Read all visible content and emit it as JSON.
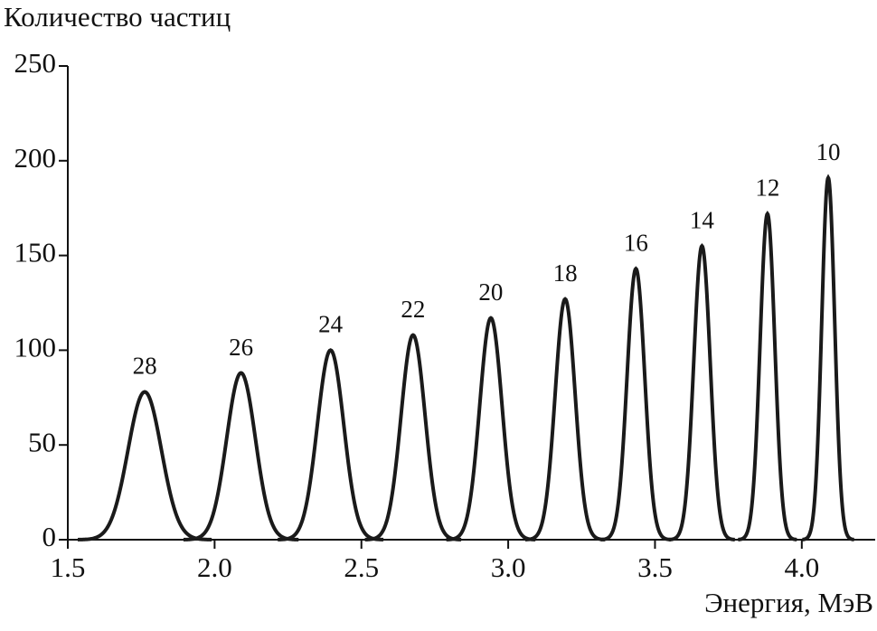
{
  "chart_data": {
    "type": "line",
    "ylabel": "Количество частиц",
    "xlabel": "Энергия, МэВ",
    "xlim": [
      1.5,
      4.25
    ],
    "ylim": [
      0,
      250
    ],
    "xticks": [
      {
        "value": 1.5,
        "label": "1.5"
      },
      {
        "value": 2.0,
        "label": "2.0"
      },
      {
        "value": 2.5,
        "label": "2.5"
      },
      {
        "value": 3.0,
        "label": "3.0"
      },
      {
        "value": 3.5,
        "label": "3.5"
      },
      {
        "value": 4.0,
        "label": "4.0"
      }
    ],
    "yticks": [
      0,
      50,
      100,
      150,
      200,
      250
    ],
    "color": "#1a1a1a",
    "peaks": {
      "x": [
        1.762,
        2.09,
        2.395,
        2.676,
        2.941,
        3.194,
        3.435,
        3.66,
        3.883,
        4.09
      ],
      "values": [
        78,
        88,
        100,
        108,
        117,
        127,
        143,
        155,
        172,
        191
      ],
      "widths": [
        0.057,
        0.049,
        0.045,
        0.041,
        0.038,
        0.034,
        0.03,
        0.028,
        0.025,
        0.022
      ],
      "labels": [
        28,
        26,
        24,
        22,
        20,
        18,
        16,
        14,
        12,
        10
      ]
    }
  }
}
